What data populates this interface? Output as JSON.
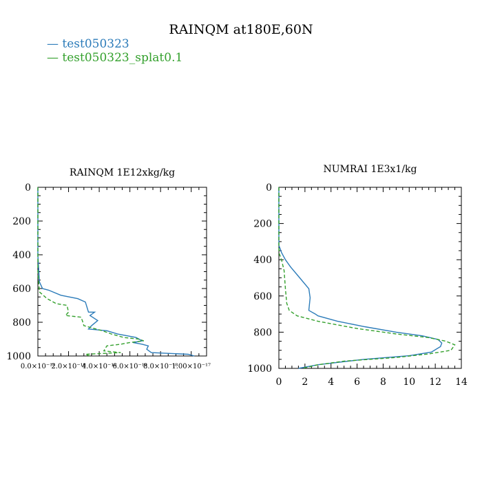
{
  "figure": {
    "title": "RAINQM at180E,60N",
    "series_colors": {
      "test050323": "#2b7bb9",
      "test050323_splat0.1": "#33a02c"
    }
  },
  "legend": [
    {
      "label": "test050323",
      "color": "#2b7bb9",
      "style": "solid"
    },
    {
      "label": "test050323_splat0.1",
      "color": "#33a02c",
      "style": "dashed"
    }
  ],
  "chart_data": [
    {
      "type": "line",
      "title": "RAINQM  1E12xkg/kg",
      "xlabel": "",
      "ylabel": "",
      "xlim": [
        0,
        1.1e-17
      ],
      "ylim": [
        1000,
        0
      ],
      "y_inverted": true,
      "grid": false,
      "xtick_values": [
        0,
        2e-18,
        4e-18,
        6e-18,
        8e-18,
        1e-17
      ],
      "xtick_labels": [
        "0.0×10⁻¹⁸",
        "2.0×10⁻¹⁸",
        "4.0×10⁻¹⁸",
        "6.0×10⁻¹⁸",
        "8.0×10⁻¹⁸",
        "1.00×10⁻¹⁷"
      ],
      "ytick_values": [
        0,
        200,
        400,
        600,
        800,
        1000
      ],
      "ytick_labels": [
        "0",
        "200",
        "400",
        "600",
        "800",
        "1000"
      ],
      "series": [
        {
          "name": "test050323",
          "color": "#2b7bb9",
          "dash": false,
          "points": [
            [
              0,
              0
            ],
            [
              0,
              400
            ],
            [
              1e-19,
              560
            ],
            [
              3e-19,
              600
            ],
            [
              7e-19,
              610
            ],
            [
              1.5e-18,
              640
            ],
            [
              2.6e-18,
              660
            ],
            [
              3.1e-18,
              680
            ],
            [
              3.3e-18,
              740
            ],
            [
              3.7e-18,
              740
            ],
            [
              3.4e-18,
              760
            ],
            [
              3.9e-18,
              790
            ],
            [
              3.5e-18,
              820
            ],
            [
              3.3e-18,
              840
            ],
            [
              4.5e-18,
              850
            ],
            [
              5.2e-18,
              870
            ],
            [
              6.4e-18,
              890
            ],
            [
              6.8e-18,
              910
            ],
            [
              6.2e-18,
              920
            ],
            [
              6.8e-18,
              930
            ],
            [
              7.2e-18,
              940
            ],
            [
              7.1e-18,
              960
            ],
            [
              7.4e-18,
              980
            ],
            [
              9.8e-18,
              990
            ],
            [
              1.02e-17,
              1000
            ]
          ]
        },
        {
          "name": "test050323_splat0.1",
          "color": "#33a02c",
          "dash": true,
          "points": [
            [
              0,
              0
            ],
            [
              0,
              500
            ],
            [
              1e-19,
              620
            ],
            [
              6e-19,
              660
            ],
            [
              1.2e-18,
              690
            ],
            [
              1.9e-18,
              700
            ],
            [
              2e-18,
              740
            ],
            [
              1.8e-18,
              760
            ],
            [
              2.8e-18,
              770
            ],
            [
              2.9e-18,
              790
            ],
            [
              3e-18,
              820
            ],
            [
              4.2e-18,
              850
            ],
            [
              4.8e-18,
              870
            ],
            [
              5.6e-18,
              890
            ],
            [
              6.6e-18,
              900
            ],
            [
              6.9e-18,
              910
            ],
            [
              6e-18,
              920
            ],
            [
              5.4e-18,
              930
            ],
            [
              4.5e-18,
              940
            ],
            [
              4.3e-18,
              970
            ],
            [
              5.4e-18,
              980
            ],
            [
              3.1e-18,
              990
            ],
            [
              3.4e-18,
              1000
            ]
          ]
        }
      ]
    },
    {
      "type": "line",
      "title": "NUMRAI  1E3x1/kg",
      "xlabel": "",
      "ylabel": "",
      "xlim": [
        0,
        14
      ],
      "ylim": [
        1000,
        0
      ],
      "y_inverted": true,
      "grid": false,
      "xtick_values": [
        0,
        2,
        4,
        6,
        8,
        10,
        12,
        14
      ],
      "xtick_labels": [
        "0",
        "2",
        "4",
        "6",
        "8",
        "10",
        "12",
        "14"
      ],
      "ytick_values": [
        0,
        200,
        400,
        600,
        800,
        1000
      ],
      "ytick_labels": [
        "0",
        "200",
        "400",
        "600",
        "800",
        "1000"
      ],
      "series": [
        {
          "name": "test050323",
          "color": "#2b7bb9",
          "dash": false,
          "points": [
            [
              0,
              0
            ],
            [
              0,
              320
            ],
            [
              0.2,
              360
            ],
            [
              0.5,
              400
            ],
            [
              0.9,
              440
            ],
            [
              1.6,
              500
            ],
            [
              2.3,
              560
            ],
            [
              2.4,
              610
            ],
            [
              2.3,
              680
            ],
            [
              2.8,
              700
            ],
            [
              3.0,
              710
            ],
            [
              4.5,
              740
            ],
            [
              6.6,
              770
            ],
            [
              9.0,
              800
            ],
            [
              11.0,
              820
            ],
            [
              12.2,
              840
            ],
            [
              12.5,
              860
            ],
            [
              12.4,
              880
            ],
            [
              11.7,
              910
            ],
            [
              10.0,
              930
            ],
            [
              6.5,
              950
            ],
            [
              3.0,
              980
            ],
            [
              1.5,
              1000
            ]
          ]
        },
        {
          "name": "test050323_splat0.1",
          "color": "#33a02c",
          "dash": true,
          "points": [
            [
              0,
              0
            ],
            [
              0,
              360
            ],
            [
              0.2,
              400
            ],
            [
              0.4,
              460
            ],
            [
              0.5,
              560
            ],
            [
              0.6,
              640
            ],
            [
              0.8,
              680
            ],
            [
              1.4,
              710
            ],
            [
              3.0,
              740
            ],
            [
              6.0,
              780
            ],
            [
              9.0,
              810
            ],
            [
              11.5,
              830
            ],
            [
              12.8,
              850
            ],
            [
              13.5,
              870
            ],
            [
              13.2,
              900
            ],
            [
              11.5,
              920
            ],
            [
              9.0,
              940
            ],
            [
              5.0,
              960
            ],
            [
              3.0,
              980
            ],
            [
              1.8,
              1000
            ]
          ]
        }
      ]
    }
  ]
}
